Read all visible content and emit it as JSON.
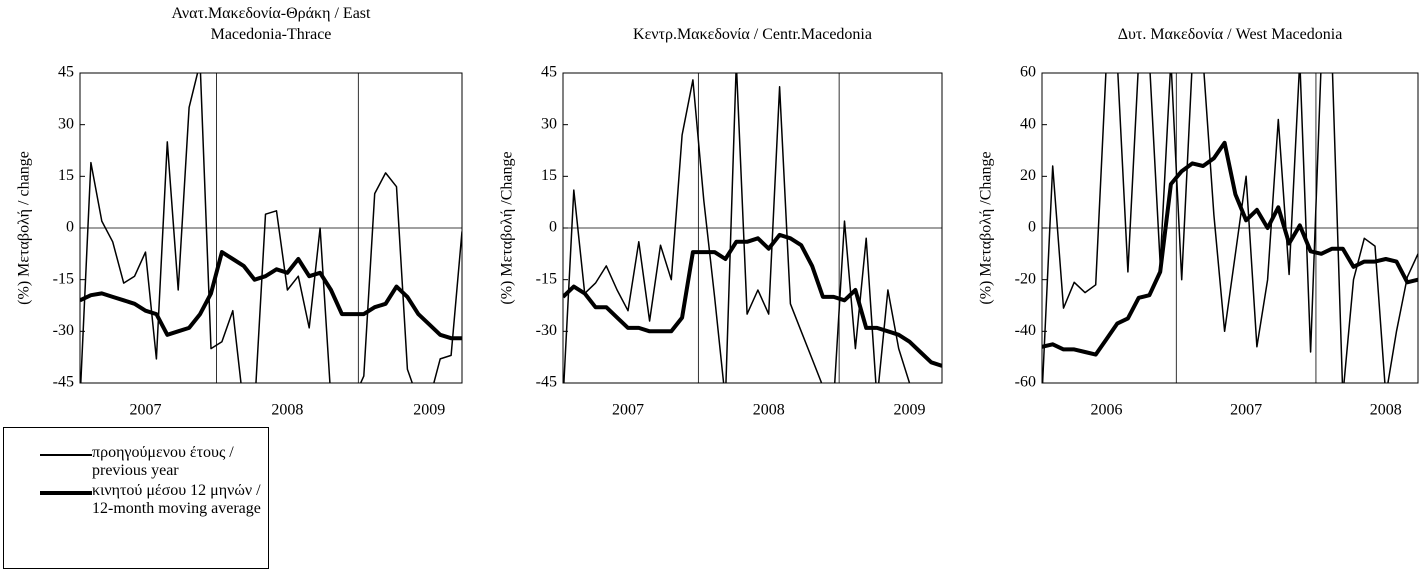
{
  "chart_data": [
    {
      "type": "line",
      "title": "Ανατ.Μακεδονία-Θράκη / East Macedonia-Thrace",
      "ylabel": "(%) Μεταβολή / change",
      "categories": [
        null,
        null,
        null,
        null,
        null,
        null,
        "2007",
        null,
        null,
        null,
        null,
        null,
        null,
        null,
        null,
        null,
        null,
        null,
        null,
        "2008",
        null,
        null,
        null,
        null,
        null,
        null,
        null,
        null,
        null,
        null,
        null,
        null,
        "2009",
        null,
        null,
        null
      ],
      "ylim": [
        -45,
        45
      ],
      "yticks": [
        -45,
        -30,
        -15,
        0,
        15,
        30,
        45
      ],
      "series": [
        {
          "name": "προηγούμενου έτους / previous year",
          "color": "#000000",
          "line_width": 1.5,
          "values": [
            -50,
            19,
            2,
            -4,
            -16,
            -14,
            -7,
            -38,
            25,
            -18,
            35,
            48,
            -35,
            -33,
            -24,
            -52,
            -52,
            4,
            5,
            -18,
            -14,
            -29,
            0,
            -50,
            -50,
            -50,
            -43,
            10,
            16,
            12,
            -41,
            -50,
            -50,
            -38,
            -37,
            -1
          ]
        },
        {
          "name": "κινητού μέσου 12 μηνών / 12-month moving average",
          "color": "#000000",
          "line_width": 4,
          "values": [
            -21,
            -19.5,
            -19,
            -20,
            -21,
            -22,
            -24,
            -25,
            -31,
            -30,
            -29,
            -25,
            -19,
            -7,
            -9,
            -11,
            -15,
            -14,
            -12,
            -13,
            -9,
            -14,
            -13,
            -18,
            -25,
            -25,
            -25,
            -23,
            -22,
            -17,
            -20,
            -25,
            -28,
            -31,
            -32,
            -32
          ]
        }
      ]
    },
    {
      "type": "line",
      "title": "Κεντρ.Μακεδονία / Centr.Macedonia",
      "ylabel": "(%) Μεταβολή  /Change",
      "categories": [
        null,
        null,
        null,
        null,
        null,
        null,
        "2007",
        null,
        null,
        null,
        null,
        null,
        null,
        null,
        null,
        null,
        null,
        null,
        null,
        "2008",
        null,
        null,
        null,
        null,
        null,
        null,
        null,
        null,
        null,
        null,
        null,
        null,
        "2009",
        null,
        null,
        null
      ],
      "ylim": [
        -45,
        45
      ],
      "yticks": [
        -45,
        -30,
        -15,
        0,
        15,
        30,
        45
      ],
      "series": [
        {
          "name": "προηγούμενου έτους / previous year",
          "color": "#000000",
          "line_width": 1.5,
          "values": [
            -50,
            11,
            -19,
            -16,
            -11,
            -18,
            -24,
            -4,
            -27,
            -5,
            -15,
            27,
            43,
            8,
            -20,
            -50,
            48,
            -25,
            -18,
            -25,
            41,
            -22,
            -30,
            -38,
            -46,
            -50,
            2,
            -35,
            -3,
            -50,
            -18,
            -35,
            -45,
            -50,
            -50,
            -50
          ]
        },
        {
          "name": "κινητού μέσου 12 μηνών / 12-month moving average",
          "color": "#000000",
          "line_width": 4,
          "values": [
            -20,
            -17,
            -19,
            -23,
            -23,
            -26,
            -29,
            -29,
            -30,
            -30,
            -30,
            -26,
            -7,
            -7,
            -7,
            -9,
            -4,
            -4,
            -3,
            -6,
            -2,
            -3,
            -5,
            -11,
            -20,
            -20,
            -21,
            -18,
            -29,
            -29,
            -30,
            -31,
            -33,
            -36,
            -39,
            -40
          ]
        }
      ]
    },
    {
      "type": "line",
      "title": "Δυτ. Μακεδονία / West Macedonia",
      "ylabel": "(%) Μεταβολή  /Change",
      "categories": [
        null,
        null,
        null,
        null,
        null,
        null,
        "2006",
        null,
        null,
        null,
        null,
        null,
        null,
        null,
        null,
        null,
        null,
        null,
        null,
        "2007",
        null,
        null,
        null,
        null,
        null,
        null,
        null,
        null,
        null,
        null,
        null,
        null,
        "2008",
        null,
        null,
        null
      ],
      "ylim": [
        -60,
        60
      ],
      "yticks": [
        -60,
        -40,
        -20,
        0,
        20,
        40,
        60
      ],
      "series": [
        {
          "name": "προηγούμενου έτους / previous year",
          "color": "#000000",
          "line_width": 1.5,
          "values": [
            -65,
            24,
            -31,
            -21,
            -25,
            -22,
            65,
            65,
            -17,
            65,
            65,
            -14,
            65,
            -20,
            65,
            65,
            5,
            -40,
            -10,
            20,
            -46,
            -20,
            42,
            -18,
            65,
            -48,
            65,
            65,
            -65,
            -20,
            -4,
            -7,
            -65,
            -40,
            -19,
            -10
          ]
        },
        {
          "name": "κινητού μέσου 12 μηνών / 12-month moving average",
          "color": "#000000",
          "line_width": 4,
          "values": [
            -46,
            -45,
            -47,
            -47,
            -48,
            -49,
            -43,
            -37,
            -35,
            -27,
            -26,
            -17,
            17,
            22,
            25,
            24,
            27,
            33,
            13,
            3,
            7,
            0,
            8,
            -6,
            1,
            -9,
            -10,
            -8,
            -8,
            -15,
            -13,
            -13,
            -12,
            -13,
            -21,
            -20
          ]
        }
      ]
    }
  ]
}
